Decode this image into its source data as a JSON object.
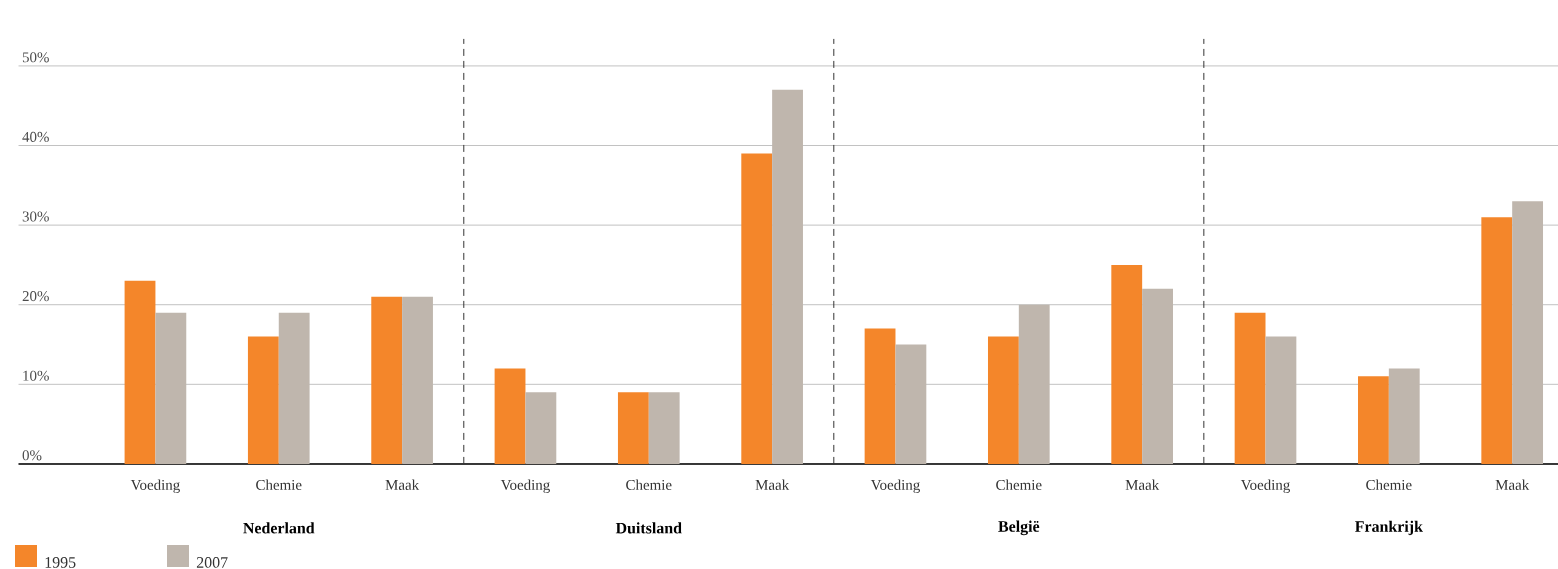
{
  "chart_data": {
    "type": "bar",
    "categories": [
      "Voeding",
      "Chemie",
      "Maak",
      "Voeding",
      "Chemie",
      "Maak",
      "Voeding",
      "Chemie",
      "Maak",
      "Voeding",
      "Chemie",
      "Maak"
    ],
    "series": [
      {
        "name": "1995",
        "color": "#f4862a",
        "values": [
          23,
          16,
          21,
          12,
          9,
          39,
          17,
          16,
          25,
          19,
          11,
          31
        ]
      },
      {
        "name": "2007",
        "color": "#bfb6ad",
        "values": [
          19,
          19,
          21,
          9,
          9,
          47,
          15,
          20,
          22,
          16,
          12,
          33
        ]
      }
    ],
    "ylim": [
      0,
      50
    ],
    "yticks": [
      {
        "value": 0,
        "label": "0%"
      },
      {
        "value": 10,
        "label": "10%"
      },
      {
        "value": 20,
        "label": "20%"
      },
      {
        "value": 30,
        "label": "30%"
      },
      {
        "value": 40,
        "label": "40%"
      },
      {
        "value": 50,
        "label": "50%"
      }
    ],
    "grid": "y",
    "legend": "bottom left",
    "annotations": [
      "**Nederland**",
      "**Duitsland**",
      "**België**",
      "**Frankrijk**"
    ]
  }
}
